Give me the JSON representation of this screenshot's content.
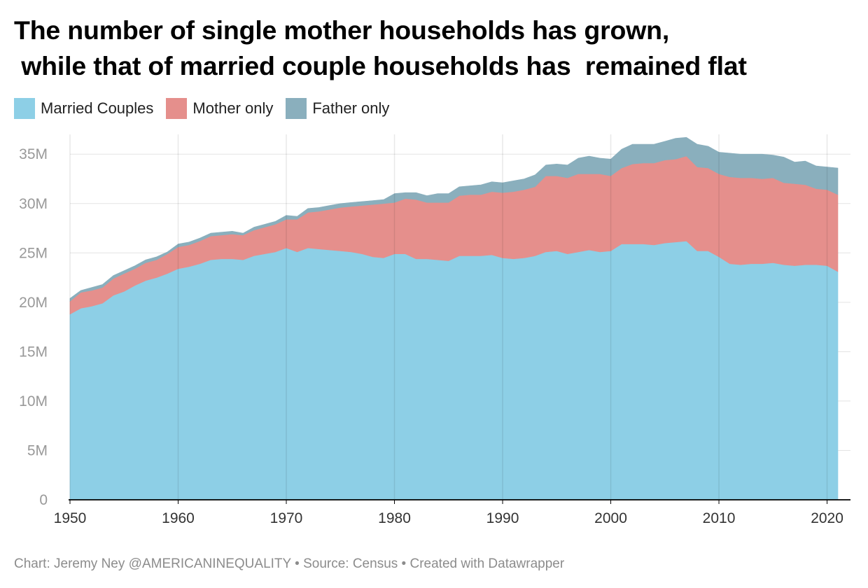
{
  "title_lines": [
    "The number of single mother households has grown,",
    " while that of married couple households has  remained flat"
  ],
  "legend": [
    {
      "label": "Married Couples",
      "color": "#8dcfe6"
    },
    {
      "label": "Mother only",
      "color": "#e58f8c"
    },
    {
      "label": "Father only",
      "color": "#8aafbd"
    }
  ],
  "footer": {
    "credit": "Chart: Jeremy Ney @AMERICANINEQUALITY",
    "sep": " • ",
    "source": "Source: Census",
    "created": "Created with Datawrapper"
  },
  "chart_data": {
    "type": "area",
    "stacked": true,
    "grid": true,
    "ylim": [
      0,
      37000000
    ],
    "xlim": [
      1950,
      2021
    ],
    "y_ticks": [
      {
        "value": 0,
        "label": "0"
      },
      {
        "value": 5000000,
        "label": "5M"
      },
      {
        "value": 10000000,
        "label": "10M"
      },
      {
        "value": 15000000,
        "label": "15M"
      },
      {
        "value": 20000000,
        "label": "20M"
      },
      {
        "value": 25000000,
        "label": "25M"
      },
      {
        "value": 30000000,
        "label": "30M"
      },
      {
        "value": 35000000,
        "label": "35M"
      }
    ],
    "x_ticks": [
      {
        "value": 1950,
        "label": "1950"
      },
      {
        "value": 1960,
        "label": "1960"
      },
      {
        "value": 1970,
        "label": "1970"
      },
      {
        "value": 1980,
        "label": "1980"
      },
      {
        "value": 1990,
        "label": "1990"
      },
      {
        "value": 2000,
        "label": "2000"
      },
      {
        "value": 2010,
        "label": "2010"
      },
      {
        "value": 2020,
        "label": "2020"
      }
    ],
    "x": [
      1950,
      1951,
      1952,
      1953,
      1954,
      1955,
      1956,
      1957,
      1958,
      1959,
      1960,
      1961,
      1962,
      1963,
      1964,
      1965,
      1966,
      1967,
      1968,
      1969,
      1970,
      1971,
      1972,
      1973,
      1974,
      1975,
      1976,
      1977,
      1978,
      1979,
      1980,
      1981,
      1982,
      1983,
      1984,
      1985,
      1986,
      1987,
      1988,
      1989,
      1990,
      1991,
      1992,
      1993,
      1994,
      1995,
      1996,
      1997,
      1998,
      1999,
      2000,
      2001,
      2002,
      2003,
      2004,
      2005,
      2006,
      2007,
      2008,
      2009,
      2010,
      2011,
      2012,
      2013,
      2014,
      2015,
      2016,
      2017,
      2018,
      2019,
      2020,
      2021
    ],
    "series": [
      {
        "name": "Married Couples",
        "color": "#8dcfe6",
        "values": [
          18800000,
          19400000,
          19600000,
          19900000,
          20700000,
          21100000,
          21700000,
          22200000,
          22500000,
          22900000,
          23400000,
          23600000,
          23900000,
          24300000,
          24400000,
          24400000,
          24300000,
          24700000,
          24900000,
          25100000,
          25500000,
          25100000,
          25500000,
          25400000,
          25300000,
          25200000,
          25100000,
          24900000,
          24600000,
          24500000,
          24900000,
          24900000,
          24400000,
          24400000,
          24300000,
          24200000,
          24700000,
          24700000,
          24700000,
          24800000,
          24500000,
          24400000,
          24500000,
          24700000,
          25100000,
          25200000,
          24900000,
          25100000,
          25300000,
          25100000,
          25200000,
          25900000,
          25900000,
          25900000,
          25800000,
          26000000,
          26100000,
          26200000,
          25200000,
          25200000,
          24600000,
          23900000,
          23800000,
          23900000,
          23900000,
          24000000,
          23800000,
          23700000,
          23800000,
          23800000,
          23700000,
          23100000
        ]
      },
      {
        "name": "Mother only",
        "color": "#e58f8c",
        "values": [
          1300000,
          1600000,
          1600000,
          1600000,
          1700000,
          1800000,
          1700000,
          1800000,
          1800000,
          2000000,
          2200000,
          2200000,
          2300000,
          2400000,
          2400000,
          2500000,
          2500000,
          2600000,
          2700000,
          2800000,
          2900000,
          3300000,
          3600000,
          3800000,
          4100000,
          4400000,
          4600000,
          4900000,
          5300000,
          5500000,
          5200000,
          5600000,
          6000000,
          5700000,
          5800000,
          5900000,
          6100000,
          6200000,
          6200000,
          6400000,
          6600000,
          6800000,
          6900000,
          7000000,
          7700000,
          7600000,
          7700000,
          7900000,
          7700000,
          7900000,
          7600000,
          7700000,
          8100000,
          8200000,
          8300000,
          8400000,
          8400000,
          8600000,
          8500000,
          8400000,
          8400000,
          8800000,
          8800000,
          8700000,
          8600000,
          8600000,
          8300000,
          8300000,
          8100000,
          7700000,
          7700000,
          7800000
        ]
      },
      {
        "name": "Father only",
        "color": "#8aafbd",
        "values": [
          300000,
          200000,
          300000,
          300000,
          300000,
          300000,
          300000,
          300000,
          300000,
          200000,
          300000,
          300000,
          300000,
          300000,
          300000,
          300000,
          200000,
          300000,
          300000,
          300000,
          400000,
          300000,
          400000,
          400000,
          400000,
          400000,
          400000,
          400000,
          400000,
          400000,
          900000,
          600000,
          700000,
          700000,
          900000,
          900000,
          900000,
          900000,
          1000000,
          1000000,
          1000000,
          1100000,
          1100000,
          1200000,
          1100000,
          1200000,
          1300000,
          1600000,
          1800000,
          1600000,
          1700000,
          1900000,
          2000000,
          1900000,
          1900000,
          1900000,
          2100000,
          1900000,
          2300000,
          2200000,
          2200000,
          2400000,
          2400000,
          2400000,
          2500000,
          2300000,
          2600000,
          2200000,
          2400000,
          2300000,
          2300000,
          2700000
        ]
      }
    ]
  }
}
